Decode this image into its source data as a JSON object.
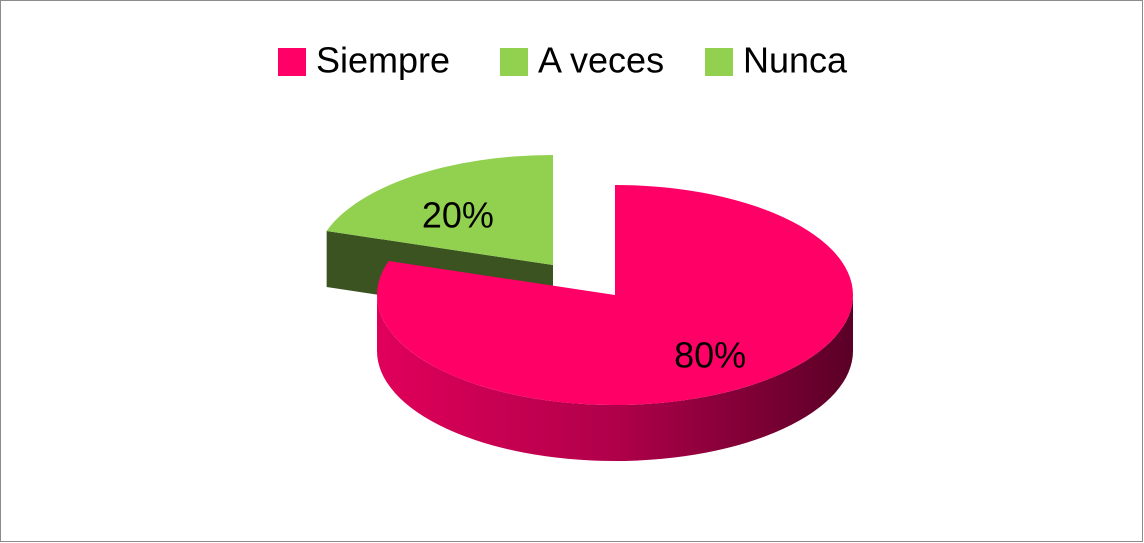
{
  "chart_data": {
    "type": "pie",
    "categories": [
      "Siempre",
      "A veces",
      "Nunca"
    ],
    "values": [
      80,
      20,
      0
    ],
    "value_labels": [
      "80%",
      "20%",
      null
    ],
    "colors": [
      "#ff0066",
      "#92d050",
      "#92d050"
    ],
    "legend": "top"
  }
}
